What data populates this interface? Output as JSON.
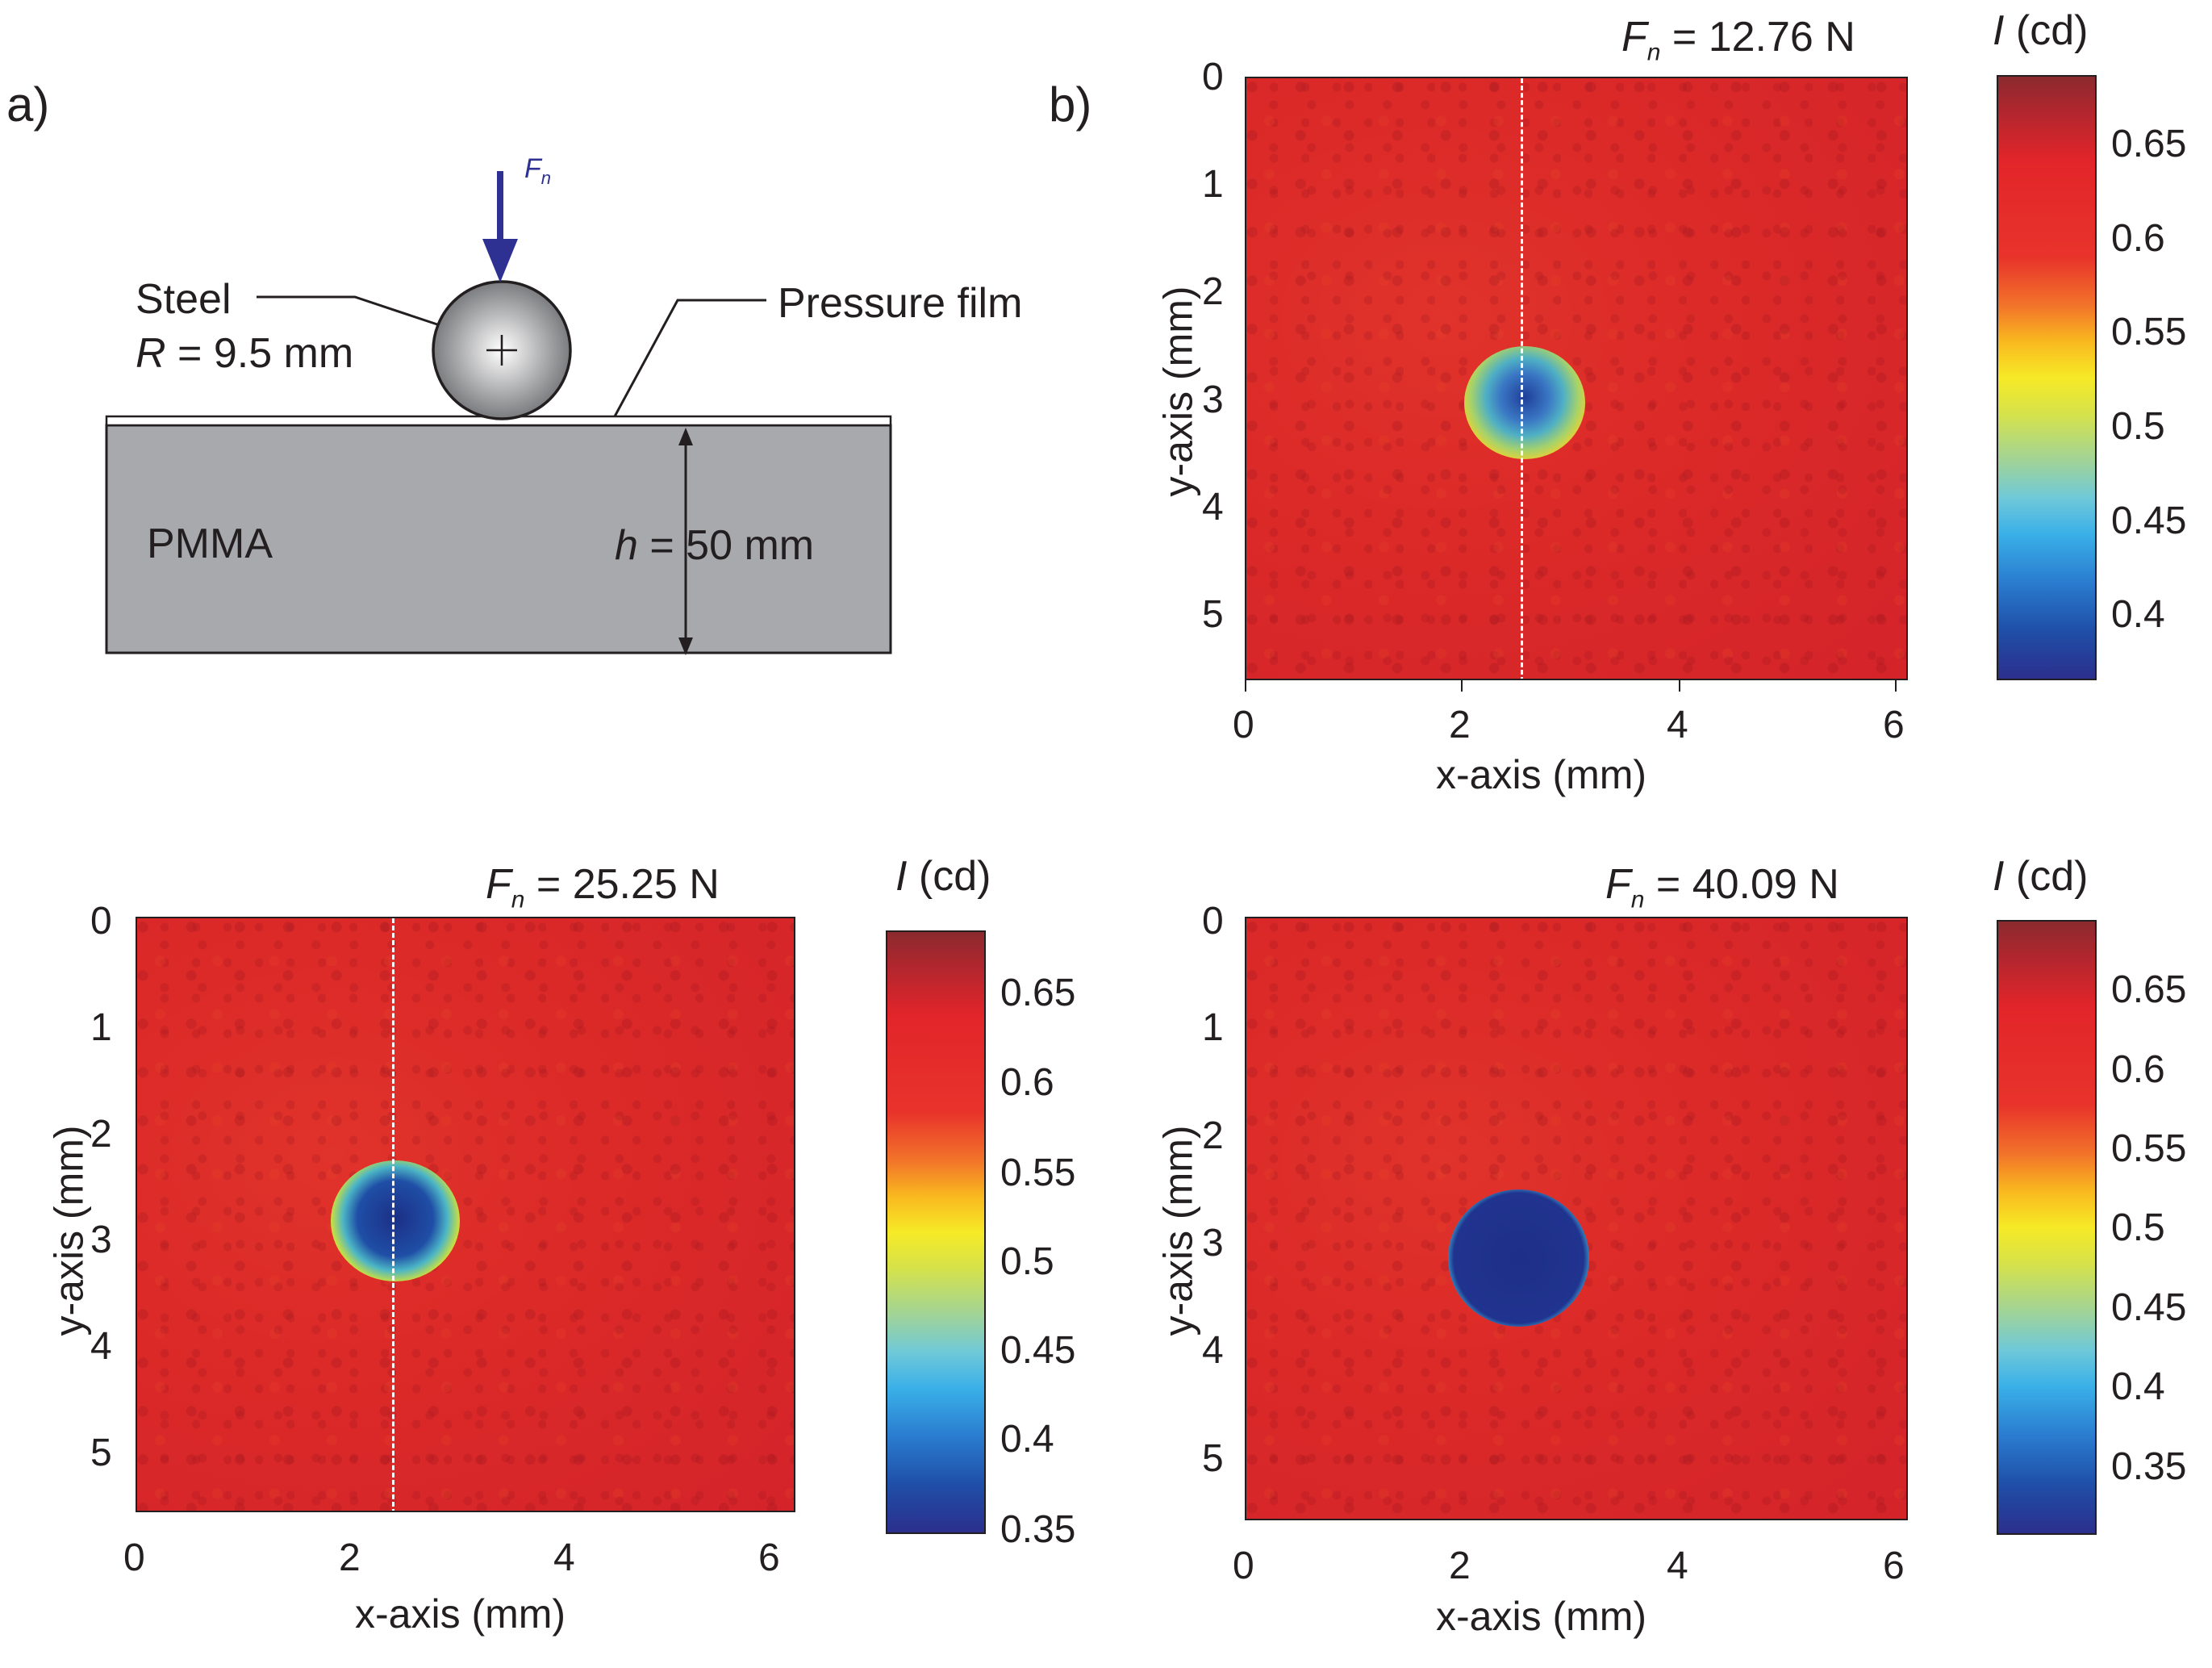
{
  "panel_a": {
    "letter": "a)",
    "force_symbol": "F",
    "force_sub": "n",
    "ball_material": "Steel",
    "radius_sym": "R",
    "radius_val": " = 9.5 mm",
    "film_label": "Pressure film",
    "substrate_label": "PMMA",
    "height_sym": "h",
    "height_val": " = 50 mm",
    "colors": {
      "arrow": "#2e3192",
      "substrate": "#a7a9ac",
      "ball_edge": "#231f20"
    }
  },
  "panel_b": {
    "letter": "b)"
  },
  "chart_data": [
    {
      "type": "heatmap",
      "id": "plot-12",
      "force_label_sym": "F",
      "force_label_sub": "n",
      "force_label_val": " = 12.76 N",
      "force_N": 12.76,
      "xlabel": "x-axis (mm)",
      "ylabel": "y-axis (mm)",
      "xlim": [
        0,
        6.1
      ],
      "ylim": [
        0,
        5.6
      ],
      "xticks": [
        "0",
        "2",
        "4",
        "6"
      ],
      "yticks": [
        "0",
        "1",
        "2",
        "3",
        "4",
        "5"
      ],
      "colorbar_title_sym": "I",
      "colorbar_title_unit": " (cd)",
      "colorbar_ticks": [
        "0.65",
        "0.6",
        "0.55",
        "0.5",
        "0.45",
        "0.4"
      ],
      "clim": [
        0.36,
        0.69
      ],
      "contact_center_mm": [
        2.55,
        2.8
      ],
      "contact_radius_mm": 0.38,
      "dashed_line_x_mm": 2.55
    },
    {
      "type": "heatmap",
      "id": "plot-25",
      "force_label_sym": "F",
      "force_label_sub": "n",
      "force_label_val": " = 25.25 N",
      "force_N": 25.25,
      "xlabel": "x-axis (mm)",
      "ylabel": "y-axis (mm)",
      "xlim": [
        0,
        6.2
      ],
      "ylim": [
        0,
        5.6
      ],
      "xticks": [
        "0",
        "2",
        "4",
        "6"
      ],
      "yticks": [
        "0",
        "1",
        "2",
        "3",
        "4",
        "5"
      ],
      "colorbar_title_sym": "I",
      "colorbar_title_unit": " (cd)",
      "colorbar_ticks": [
        "0.65",
        "0.6",
        "0.55",
        "0.5",
        "0.45",
        "0.4",
        "0.35"
      ],
      "clim": [
        0.34,
        0.68
      ],
      "contact_center_mm": [
        2.45,
        2.75
      ],
      "contact_radius_mm": 0.55,
      "dashed_line_x_mm": 2.4
    },
    {
      "type": "heatmap",
      "id": "plot-40",
      "force_label_sym": "F",
      "force_label_sub": "n",
      "force_label_val": " = 40.09 N",
      "force_N": 40.09,
      "xlabel": "x-axis (mm)",
      "ylabel": "y-axis (mm)",
      "xlim": [
        0,
        6.1
      ],
      "ylim": [
        0,
        5.6
      ],
      "xticks": [
        "0",
        "2",
        "4",
        "6"
      ],
      "yticks": [
        "0",
        "1",
        "2",
        "3",
        "4",
        "5"
      ],
      "colorbar_title_sym": "I",
      "colorbar_title_unit": " (cd)",
      "colorbar_ticks": [
        "0.65",
        "0.6",
        "0.55",
        "0.5",
        "0.45",
        "0.4",
        "0.35"
      ],
      "clim": [
        0.3,
        0.69
      ],
      "contact_center_mm": [
        2.5,
        3.1
      ],
      "contact_radius_mm": 0.68
    }
  ]
}
